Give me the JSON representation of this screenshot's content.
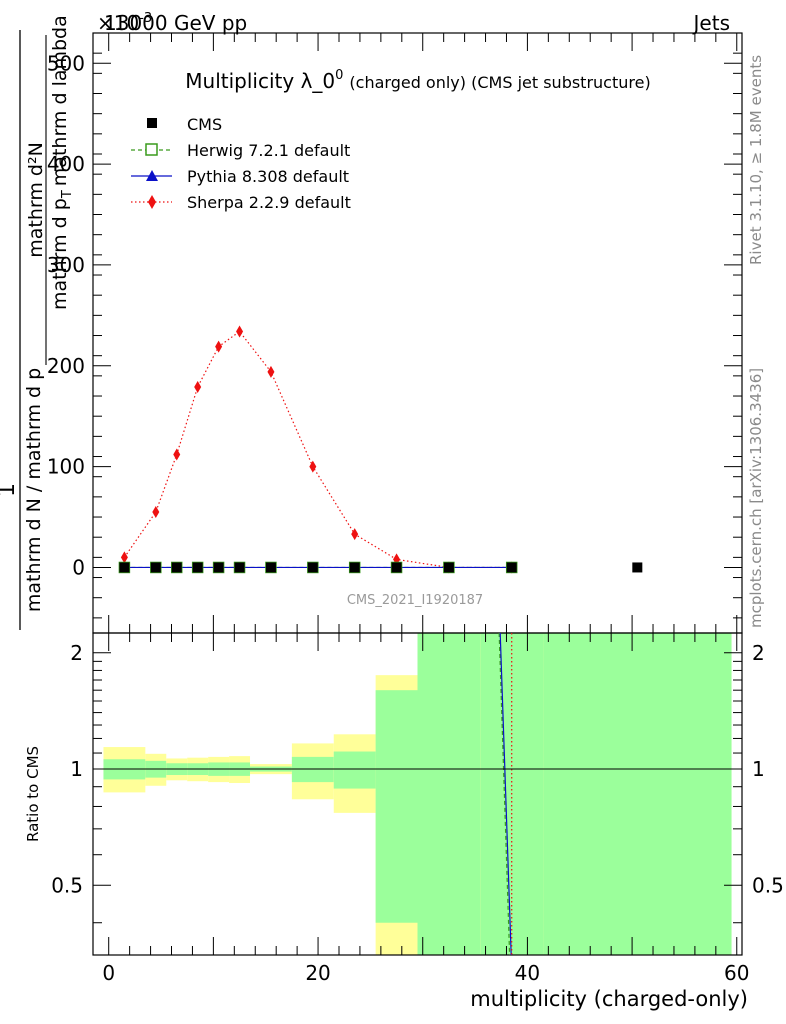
{
  "header": {
    "left": "13000 GeV pp",
    "right": "Jets",
    "exponent": "×10",
    "exponent_power": "-3"
  },
  "side_labels": {
    "rivet": "Rivet 3.1.10, ≥ 1.8M events",
    "mcplots": "mcplots.cern.ch [arXiv:1306.3436]"
  },
  "watermark": "CMS_2021_I1920187",
  "chart_data": [
    {
      "type": "line",
      "panel": "main",
      "title": "Multiplicity λ_0",
      "title_sup": "0",
      "title_suffix": "(charged only) (CMS jet substructure)",
      "ylabel_numerator": "1",
      "ylabel_numerator_right": "mathrm d²N",
      "ylabel_denominator": "mathrm d N / mathrm d p",
      "ylabel_denominator_right": "mathrm d p",
      "ylabel_denominator_sub": "T",
      "ylabel_denominator_end": "mathrm d lambda",
      "xlim": [
        -1.5,
        60.5
      ],
      "ylim": [
        -65,
        530
      ],
      "yticks": [
        0,
        100,
        200,
        300,
        400,
        500
      ],
      "grid": false,
      "legend_position": "top-left",
      "series": [
        {
          "name": "CMS",
          "marker": "square",
          "color": "#000000",
          "points": [
            [
              1.5,
              0
            ],
            [
              4.5,
              0
            ],
            [
              6.5,
              0
            ],
            [
              8.5,
              0
            ],
            [
              10.5,
              0
            ],
            [
              12.5,
              0
            ],
            [
              15.5,
              0
            ],
            [
              19.5,
              0
            ],
            [
              23.5,
              0
            ],
            [
              27.5,
              0
            ],
            [
              32.5,
              0
            ],
            [
              38.5,
              0
            ],
            [
              50.5,
              0
            ]
          ]
        },
        {
          "name": "Herwig 7.2.1 default",
          "marker": "open-square",
          "color": "#3a9b1d",
          "line": "dashed",
          "points": [
            [
              1.5,
              0
            ],
            [
              4.5,
              0
            ],
            [
              6.5,
              0
            ],
            [
              8.5,
              0
            ],
            [
              10.5,
              0
            ],
            [
              12.5,
              0
            ],
            [
              15.5,
              0
            ],
            [
              19.5,
              0
            ],
            [
              23.5,
              0
            ],
            [
              27.5,
              0
            ],
            [
              32.5,
              0
            ],
            [
              38.5,
              0
            ]
          ]
        },
        {
          "name": "Pythia 8.308 default",
          "marker": "triangle",
          "color": "#0a10c8",
          "line": "solid",
          "points": [
            [
              1.5,
              0
            ],
            [
              4.5,
              0
            ],
            [
              6.5,
              0
            ],
            [
              8.5,
              0
            ],
            [
              10.5,
              0
            ],
            [
              12.5,
              0
            ],
            [
              15.5,
              0
            ],
            [
              19.5,
              0
            ],
            [
              23.5,
              0
            ],
            [
              27.5,
              0
            ],
            [
              32.5,
              0
            ],
            [
              38.5,
              0
            ]
          ]
        },
        {
          "name": "Sherpa 2.2.9 default",
          "marker": "diamond",
          "color": "#ee1111",
          "line": "dotted",
          "points": [
            [
              1.5,
              10
            ],
            [
              4.5,
              55
            ],
            [
              6.5,
              112
            ],
            [
              8.5,
              179
            ],
            [
              10.5,
              219
            ],
            [
              12.5,
              234
            ],
            [
              15.5,
              194
            ],
            [
              19.5,
              100
            ],
            [
              23.5,
              33
            ],
            [
              27.5,
              8
            ],
            [
              32.5,
              0
            ],
            [
              38.5,
              0
            ]
          ]
        }
      ]
    },
    {
      "type": "area",
      "panel": "ratio",
      "ylabel": "Ratio to CMS",
      "xlabel": "multiplicity (charged-only)",
      "xlim": [
        -1.5,
        60.5
      ],
      "ylim": [
        0.33,
        2.25
      ],
      "xticks": [
        0,
        20,
        40,
        60
      ],
      "yticks": [
        0.5,
        1,
        2
      ],
      "reference_line": 1,
      "bands": [
        {
          "x0": -0.5,
          "x1": 3.5,
          "inner": [
            0.94,
            1.06
          ],
          "outer": [
            0.87,
            1.14
          ]
        },
        {
          "x0": 3.5,
          "x1": 5.5,
          "inner": [
            0.95,
            1.05
          ],
          "outer": [
            0.905,
            1.095
          ]
        },
        {
          "x0": 5.5,
          "x1": 7.5,
          "inner": [
            0.965,
            1.035
          ],
          "outer": [
            0.935,
            1.065
          ]
        },
        {
          "x0": 7.5,
          "x1": 9.5,
          "inner": [
            0.965,
            1.035
          ],
          "outer": [
            0.93,
            1.07
          ]
        },
        {
          "x0": 9.5,
          "x1": 11.5,
          "inner": [
            0.96,
            1.04
          ],
          "outer": [
            0.925,
            1.075
          ]
        },
        {
          "x0": 11.5,
          "x1": 13.5,
          "inner": [
            0.96,
            1.04
          ],
          "outer": [
            0.92,
            1.08
          ]
        },
        {
          "x0": 13.5,
          "x1": 17.5,
          "inner": [
            0.985,
            1.015
          ],
          "outer": [
            0.97,
            1.03
          ]
        },
        {
          "x0": 17.5,
          "x1": 21.5,
          "inner": [
            0.925,
            1.075
          ],
          "outer": [
            0.835,
            1.165
          ]
        },
        {
          "x0": 21.5,
          "x1": 25.5,
          "inner": [
            0.89,
            1.11
          ],
          "outer": [
            0.77,
            1.23
          ]
        },
        {
          "x0": 25.5,
          "x1": 29.5,
          "inner": [
            0.4,
            1.6
          ],
          "outer": [
            0.25,
            1.75
          ]
        },
        {
          "x0": 29.5,
          "x1": 35.5,
          "inner": [
            0.1,
            2.4
          ],
          "outer": [
            0.05,
            3.0
          ]
        },
        {
          "x0": 35.5,
          "x1": 41.5,
          "inner": [
            0.1,
            2.48
          ],
          "outer": [
            0.05,
            3.5
          ]
        },
        {
          "x0": 41.5,
          "x1": 59.5,
          "inner": [
            0.1,
            2.38
          ],
          "outer": [
            0.05,
            3.5
          ]
        }
      ],
      "series": [
        {
          "name": "Herwig 7.2.1 default",
          "color": "#3a9b1d",
          "line": "dashed",
          "points": [
            [
              37.3,
              2.6
            ],
            [
              38.3,
              0.2
            ]
          ]
        },
        {
          "name": "Pythia 8.308 default",
          "color": "#0a10c8",
          "line": "solid",
          "points": [
            [
              37.4,
              2.6
            ],
            [
              38.45,
              0.2
            ]
          ]
        },
        {
          "name": "Sherpa 2.2.9 default",
          "color": "#ee1111",
          "line": "dotted",
          "points": [
            [
              38.5,
              2.6
            ],
            [
              38.5,
              0.2
            ]
          ]
        }
      ]
    }
  ],
  "colors": {
    "band_inner": "#9bff9b",
    "band_outer": "#ffff99"
  }
}
